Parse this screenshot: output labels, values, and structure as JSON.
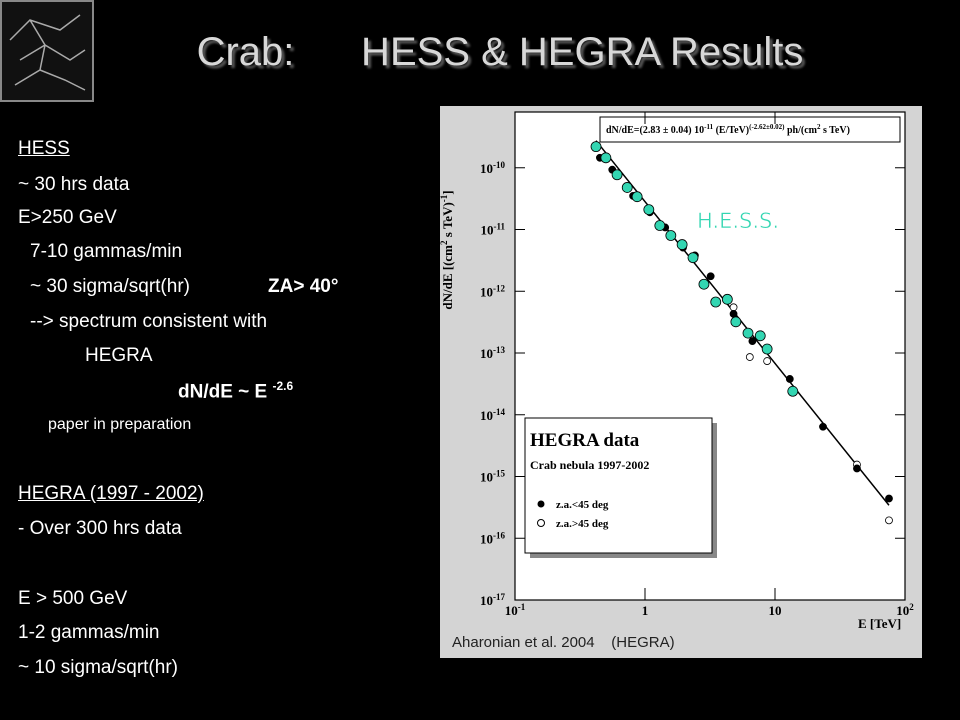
{
  "title": "Crab:      HESS & HEGRA Results",
  "hess_block": {
    "heading": "HESS",
    "lines": [
      "~ 30 hrs data",
      "E>250 GeV",
      "7-10 gammas/min",
      "~ 30 sigma/sqrt(hr)",
      "--> spectrum consistent with",
      "HEGRA"
    ],
    "za": "ZA> 40°",
    "formula": "dN/dE ~ E",
    "formula_exponent": "-2.6",
    "note": "paper in preparation"
  },
  "hegra_block": {
    "heading": "HEGRA (1997 - 2002)",
    "lines": [
      "- Over 300 hrs data",
      "E > 500 GeV",
      "1-2 gammas/min",
      "~ 10 sigma/sqrt(hr)"
    ]
  },
  "caption": "Aharonian et al. 2004    (HEGRA)",
  "chart_data": {
    "type": "scatter",
    "log_x": true,
    "log_y": true,
    "grid": false,
    "xlabel": "E [TeV]",
    "ylabel": [
      "dN/dE [(cm",
      "2",
      " s TeV)",
      "-1",
      "]"
    ],
    "fit_label": [
      "dN/dE=(2.83 ± 0.04) 10",
      "-11",
      " (E/TeV)",
      "(-2.62±0.02)",
      " ph/(cm",
      "2",
      " s TeV)"
    ],
    "fit_norm": 2.83e-11,
    "fit_index": -2.62,
    "legend_title": "HEGRA data",
    "legend_subtitle": "Crab nebula 1997-2002",
    "xlim": [
      0.1,
      100
    ],
    "xticks": [
      {
        "value": 0.1,
        "label": "10",
        "exponent": "-1"
      },
      1,
      10,
      {
        "value": 100,
        "label": "10",
        "exponent": "2"
      }
    ],
    "ylim": [
      1e-17,
      8e-10
    ],
    "yticks": [
      {
        "value": 1e-17,
        "label": "10",
        "exponent": "-17"
      },
      {
        "value": 1e-16,
        "label": "10",
        "exponent": "-16"
      },
      {
        "value": 1e-15,
        "label": "10",
        "exponent": "-15"
      },
      {
        "value": 1e-14,
        "label": "10",
        "exponent": "-14"
      },
      {
        "value": 1e-13,
        "label": "10",
        "exponent": "-13"
      },
      {
        "value": 1e-12,
        "label": "10",
        "exponent": "-12"
      },
      {
        "value": 1e-11,
        "label": "10",
        "exponent": "-11"
      },
      {
        "value": 1e-10,
        "label": "10",
        "exponent": "-10"
      }
    ],
    "series": [
      {
        "name": "H.E.S.S.",
        "color": "#33d6b2",
        "marker": "filled",
        "x": [
          0.42,
          0.5,
          0.61,
          0.73,
          0.87,
          1.07,
          1.3,
          1.58,
          1.93,
          2.34,
          2.84,
          3.5,
          4.3,
          5.0,
          6.2,
          7.7,
          8.7,
          13.7
        ],
        "values": [
          2.2e-10,
          1.45e-10,
          7.7e-11,
          4.8e-11,
          3.4e-11,
          2.1e-11,
          1.16e-11,
          8e-12,
          5.7e-12,
          3.5e-12,
          1.3e-12,
          6.7e-13,
          7.4e-13,
          3.2e-13,
          2.1e-13,
          1.9e-13,
          1.16e-13,
          2.4e-14
        ]
      },
      {
        "name": "z.a.<45 deg",
        "color": "#000000",
        "marker": "filled",
        "x": [
          0.45,
          0.56,
          0.81,
          1.09,
          1.43,
          1.96,
          2.42,
          3.2,
          4.8,
          6.7,
          13.0,
          23.4,
          42.7,
          75.3
        ],
        "values": [
          1.45e-10,
          9.3e-11,
          3.5e-11,
          1.9e-11,
          1.08e-11,
          5.1e-12,
          3.8e-12,
          1.75e-12,
          4.3e-13,
          1.56e-13,
          3.8e-14,
          6.4e-15,
          1.35e-15,
          4.4e-16
        ]
      },
      {
        "name": "z.a.>45 deg",
        "color": "#000000",
        "marker": "open",
        "x": [
          4.8,
          6.4,
          8.7,
          42.7,
          75.3
        ],
        "values": [
          5.5e-13,
          8.6e-14,
          7.4e-14,
          1.56e-15,
          1.95e-16
        ]
      }
    ]
  }
}
